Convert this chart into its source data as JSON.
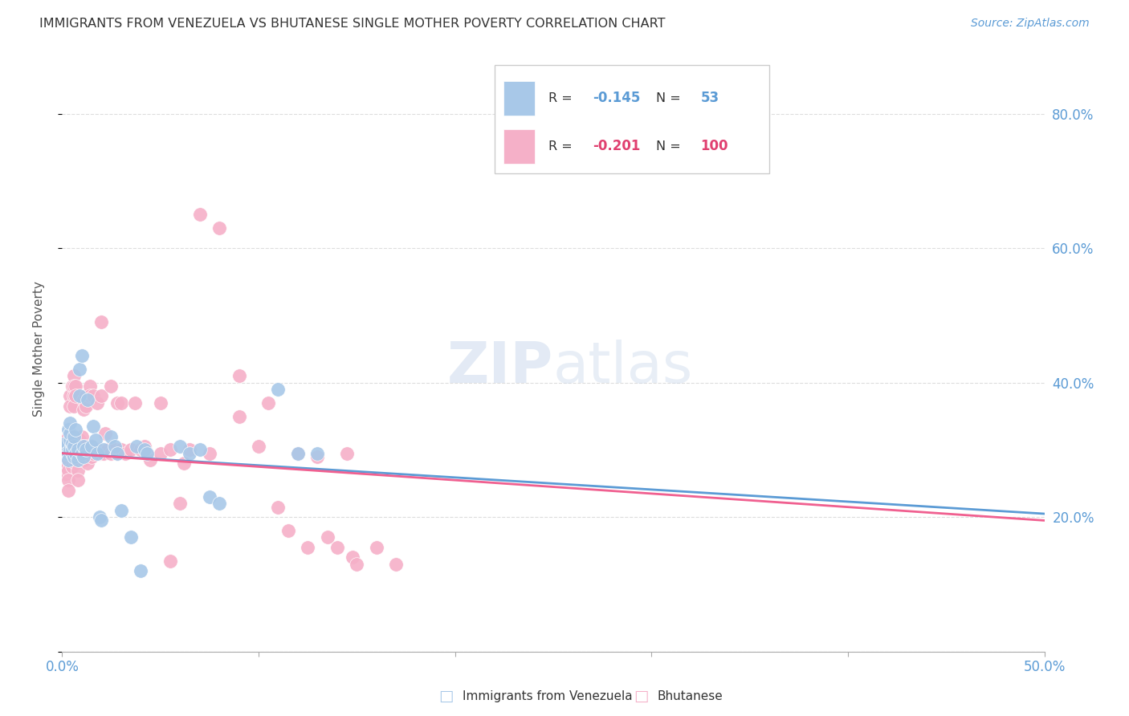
{
  "title": "IMMIGRANTS FROM VENEZUELA VS BHUTANESE SINGLE MOTHER POVERTY CORRELATION CHART",
  "source": "Source: ZipAtlas.com",
  "ylabel": "Single Mother Poverty",
  "color_blue": "#a8c8e8",
  "color_pink": "#f5b0c8",
  "color_blue_line": "#5b9bd5",
  "color_pink_line": "#f06090",
  "color_blue_text": "#5b9bd5",
  "color_pink_text": "#e04070",
  "watermark_zip": "ZIP",
  "watermark_atlas": "atlas",
  "background": "#ffffff",
  "grid_color": "#dddddd",
  "venezuela_label": "Immigrants from Venezuela",
  "bhutanese_label": "Bhutanese",
  "venezuela_points": [
    [
      0.001,
      0.305
    ],
    [
      0.002,
      0.31
    ],
    [
      0.002,
      0.295
    ],
    [
      0.003,
      0.33
    ],
    [
      0.003,
      0.295
    ],
    [
      0.003,
      0.285
    ],
    [
      0.004,
      0.3
    ],
    [
      0.004,
      0.315
    ],
    [
      0.004,
      0.325
    ],
    [
      0.004,
      0.34
    ],
    [
      0.005,
      0.305
    ],
    [
      0.005,
      0.295
    ],
    [
      0.005,
      0.3
    ],
    [
      0.005,
      0.31
    ],
    [
      0.006,
      0.305
    ],
    [
      0.006,
      0.29
    ],
    [
      0.006,
      0.32
    ],
    [
      0.007,
      0.33
    ],
    [
      0.007,
      0.295
    ],
    [
      0.008,
      0.285
    ],
    [
      0.008,
      0.3
    ],
    [
      0.009,
      0.38
    ],
    [
      0.009,
      0.42
    ],
    [
      0.01,
      0.44
    ],
    [
      0.01,
      0.295
    ],
    [
      0.011,
      0.305
    ],
    [
      0.011,
      0.29
    ],
    [
      0.012,
      0.3
    ],
    [
      0.013,
      0.375
    ],
    [
      0.015,
      0.305
    ],
    [
      0.016,
      0.335
    ],
    [
      0.017,
      0.315
    ],
    [
      0.018,
      0.295
    ],
    [
      0.019,
      0.2
    ],
    [
      0.02,
      0.195
    ],
    [
      0.021,
      0.3
    ],
    [
      0.025,
      0.32
    ],
    [
      0.027,
      0.305
    ],
    [
      0.028,
      0.295
    ],
    [
      0.03,
      0.21
    ],
    [
      0.035,
      0.17
    ],
    [
      0.038,
      0.305
    ],
    [
      0.04,
      0.12
    ],
    [
      0.042,
      0.3
    ],
    [
      0.043,
      0.295
    ],
    [
      0.06,
      0.305
    ],
    [
      0.065,
      0.295
    ],
    [
      0.07,
      0.3
    ],
    [
      0.075,
      0.23
    ],
    [
      0.08,
      0.22
    ],
    [
      0.11,
      0.39
    ],
    [
      0.12,
      0.295
    ],
    [
      0.13,
      0.295
    ]
  ],
  "bhutanese_points": [
    [
      0.001,
      0.305
    ],
    [
      0.001,
      0.285
    ],
    [
      0.001,
      0.27
    ],
    [
      0.002,
      0.315
    ],
    [
      0.002,
      0.3
    ],
    [
      0.002,
      0.28
    ],
    [
      0.002,
      0.265
    ],
    [
      0.003,
      0.32
    ],
    [
      0.003,
      0.3
    ],
    [
      0.003,
      0.285
    ],
    [
      0.003,
      0.27
    ],
    [
      0.003,
      0.255
    ],
    [
      0.003,
      0.24
    ],
    [
      0.004,
      0.31
    ],
    [
      0.004,
      0.295
    ],
    [
      0.004,
      0.38
    ],
    [
      0.004,
      0.365
    ],
    [
      0.005,
      0.32
    ],
    [
      0.005,
      0.395
    ],
    [
      0.005,
      0.275
    ],
    [
      0.006,
      0.38
    ],
    [
      0.006,
      0.365
    ],
    [
      0.006,
      0.41
    ],
    [
      0.006,
      0.395
    ],
    [
      0.007,
      0.395
    ],
    [
      0.007,
      0.38
    ],
    [
      0.007,
      0.295
    ],
    [
      0.007,
      0.28
    ],
    [
      0.008,
      0.3
    ],
    [
      0.008,
      0.285
    ],
    [
      0.008,
      0.27
    ],
    [
      0.008,
      0.255
    ],
    [
      0.009,
      0.315
    ],
    [
      0.009,
      0.3
    ],
    [
      0.009,
      0.285
    ],
    [
      0.01,
      0.32
    ],
    [
      0.01,
      0.305
    ],
    [
      0.01,
      0.29
    ],
    [
      0.011,
      0.375
    ],
    [
      0.011,
      0.36
    ],
    [
      0.011,
      0.285
    ],
    [
      0.012,
      0.38
    ],
    [
      0.012,
      0.365
    ],
    [
      0.012,
      0.305
    ],
    [
      0.013,
      0.295
    ],
    [
      0.013,
      0.28
    ],
    [
      0.014,
      0.395
    ],
    [
      0.014,
      0.38
    ],
    [
      0.015,
      0.305
    ],
    [
      0.015,
      0.29
    ],
    [
      0.016,
      0.38
    ],
    [
      0.016,
      0.295
    ],
    [
      0.017,
      0.3
    ],
    [
      0.018,
      0.37
    ],
    [
      0.018,
      0.3
    ],
    [
      0.019,
      0.295
    ],
    [
      0.02,
      0.49
    ],
    [
      0.02,
      0.38
    ],
    [
      0.021,
      0.295
    ],
    [
      0.022,
      0.325
    ],
    [
      0.023,
      0.3
    ],
    [
      0.025,
      0.395
    ],
    [
      0.025,
      0.295
    ],
    [
      0.027,
      0.3
    ],
    [
      0.028,
      0.37
    ],
    [
      0.028,
      0.295
    ],
    [
      0.03,
      0.37
    ],
    [
      0.03,
      0.3
    ],
    [
      0.032,
      0.295
    ],
    [
      0.035,
      0.3
    ],
    [
      0.037,
      0.37
    ],
    [
      0.04,
      0.3
    ],
    [
      0.042,
      0.305
    ],
    [
      0.043,
      0.295
    ],
    [
      0.045,
      0.285
    ],
    [
      0.05,
      0.37
    ],
    [
      0.05,
      0.295
    ],
    [
      0.055,
      0.3
    ],
    [
      0.055,
      0.135
    ],
    [
      0.06,
      0.22
    ],
    [
      0.062,
      0.28
    ],
    [
      0.065,
      0.3
    ],
    [
      0.07,
      0.65
    ],
    [
      0.075,
      0.295
    ],
    [
      0.08,
      0.63
    ],
    [
      0.09,
      0.41
    ],
    [
      0.09,
      0.35
    ],
    [
      0.1,
      0.305
    ],
    [
      0.105,
      0.37
    ],
    [
      0.11,
      0.215
    ],
    [
      0.115,
      0.18
    ],
    [
      0.12,
      0.295
    ],
    [
      0.125,
      0.155
    ],
    [
      0.13,
      0.29
    ],
    [
      0.135,
      0.17
    ],
    [
      0.14,
      0.155
    ],
    [
      0.145,
      0.295
    ],
    [
      0.148,
      0.14
    ],
    [
      0.15,
      0.13
    ],
    [
      0.16,
      0.155
    ],
    [
      0.17,
      0.13
    ]
  ],
  "x_range": [
    0.0,
    0.5
  ],
  "y_range": [
    0.0,
    0.9
  ],
  "x_ticks": [
    0.0,
    0.1,
    0.2,
    0.3,
    0.4,
    0.5
  ],
  "y_ticks": [
    0.0,
    0.2,
    0.4,
    0.6,
    0.8
  ],
  "trend_x": [
    0.0,
    0.5
  ],
  "trend_venezuela": [
    0.295,
    0.205
  ],
  "trend_bhutanese": [
    0.295,
    0.195
  ]
}
